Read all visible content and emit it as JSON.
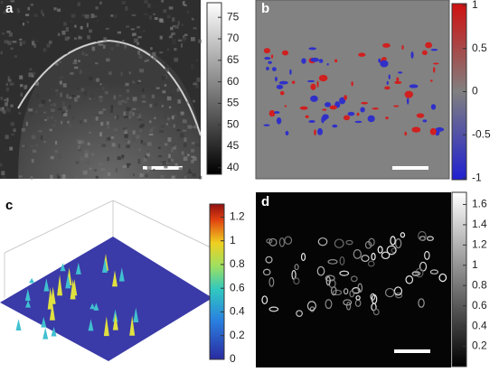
{
  "panels": [
    {
      "label": "a",
      "colorbar": {
        "lim": [
          38.5,
          78.4
        ],
        "ticks": [
          75,
          70,
          65,
          60,
          55,
          50,
          45,
          40
        ]
      }
    },
    {
      "label": "b",
      "colorbar": {
        "lim": [
          -1.02,
          1.02
        ],
        "ticks": [
          1,
          0.5,
          0,
          -0.5,
          -1
        ]
      }
    },
    {
      "label": "c",
      "colorbar": {
        "lim": [
          0,
          1.31
        ],
        "ticks": [
          1.2,
          1,
          0.8,
          0.6,
          0.4,
          0.2,
          0
        ]
      }
    },
    {
      "label": "d",
      "colorbar": {
        "lim": [
          0,
          1.72
        ],
        "ticks": [
          1.6,
          1.4,
          1.2,
          1,
          0.8,
          0.6,
          0.4,
          0.2
        ]
      }
    }
  ]
}
